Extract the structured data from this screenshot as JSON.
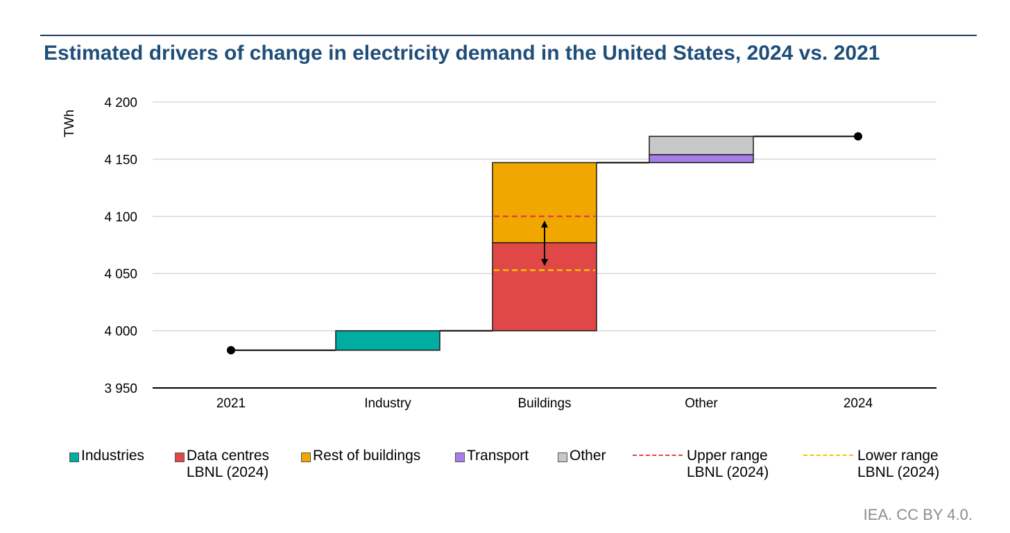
{
  "title": "Estimated drivers of change in electricity demand in the United States, 2024 vs. 2021",
  "source": "IEA. CC BY 4.0.",
  "colors": {
    "industries": "#00ada0",
    "data_centres": "#e04848",
    "rest_of_buildings": "#f0a800",
    "transport": "#a77ee8",
    "other": "#c8c8c8",
    "upper_range": "#e8413f",
    "lower_range": "#f7c200",
    "title": "#1f4e79"
  },
  "legend": [
    {
      "key": "industries",
      "label": "Industries",
      "kind": "swatch",
      "color": "#00ada0"
    },
    {
      "key": "data_centres",
      "label": "Data centres\nLBNL (2024)",
      "kind": "swatch",
      "color": "#e04848"
    },
    {
      "key": "rest_of_buildings",
      "label": "Rest of buildings",
      "kind": "swatch",
      "color": "#f0a800"
    },
    {
      "key": "transport",
      "label": "Transport",
      "kind": "swatch",
      "color": "#a77ee8"
    },
    {
      "key": "other",
      "label": "Other",
      "kind": "swatch",
      "color": "#c8c8c8"
    },
    {
      "key": "upper_range",
      "label": "Upper range\nLBNL (2024)",
      "kind": "dash",
      "color": "#e8413f"
    },
    {
      "key": "lower_range",
      "label": "Lower range\nLBNL (2024)",
      "kind": "dash",
      "color": "#f7c200"
    }
  ],
  "chart_data": {
    "type": "bar",
    "subtype": "waterfall",
    "ylabel": "TWh",
    "ylim": [
      3950,
      4200
    ],
    "yticks": [
      3950,
      4000,
      4050,
      4100,
      4150,
      4200
    ],
    "ytick_labels": [
      "3 950",
      "4 000",
      "4 050",
      "4 100",
      "4 150",
      "4 200"
    ],
    "categories": [
      "2021",
      "Industry",
      "Buildings",
      "Other",
      "2024"
    ],
    "grid": true,
    "start": {
      "category": "2021",
      "value": 3983
    },
    "end": {
      "category": "2024",
      "value": 4170
    },
    "steps": [
      {
        "category": "Industry",
        "segments": [
          {
            "name": "Industries",
            "from": 3983,
            "to": 4000,
            "color": "#00ada0"
          }
        ]
      },
      {
        "category": "Buildings",
        "segments": [
          {
            "name": "Data centres LBNL (2024)",
            "from": 4000,
            "to": 4077,
            "color": "#e04848"
          },
          {
            "name": "Rest of buildings",
            "from": 4077,
            "to": 4147,
            "color": "#f0a800"
          }
        ]
      },
      {
        "category": "Other",
        "segments": [
          {
            "name": "Transport",
            "from": 4147,
            "to": 4154,
            "color": "#a77ee8"
          },
          {
            "name": "Other",
            "from": 4154,
            "to": 4170,
            "color": "#c8c8c8"
          }
        ]
      }
    ],
    "ranges": [
      {
        "name": "Upper range LBNL (2024)",
        "category": "Buildings",
        "value": 4100,
        "color": "#e8413f"
      },
      {
        "name": "Lower range LBNL (2024)",
        "category": "Buildings",
        "value": 4053,
        "color": "#f7c200"
      }
    ],
    "range_arrow": {
      "category": "Buildings",
      "from": 4053,
      "to": 4100
    }
  }
}
